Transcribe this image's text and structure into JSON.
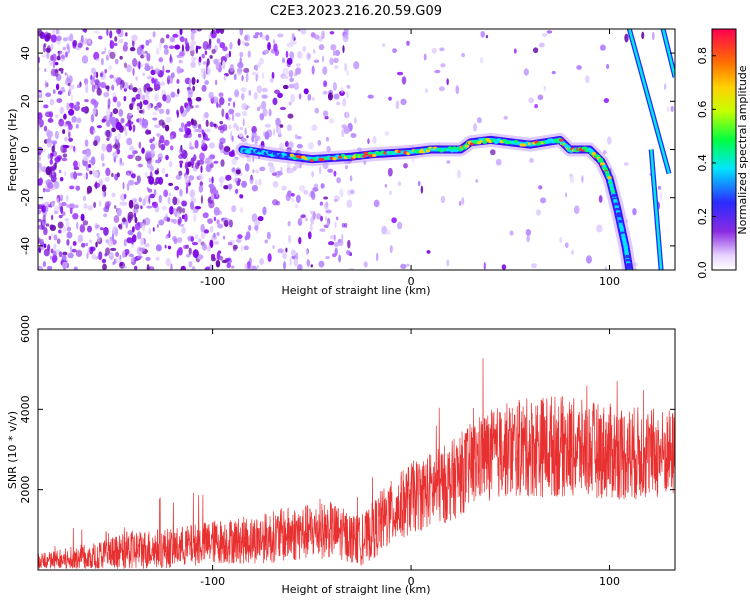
{
  "chart_data": [
    {
      "type": "heatmap",
      "title": "C2E3.2023.216.20.59.G09",
      "xlabel": "Height of straight line (km)",
      "ylabel": "Frequency (Hz)",
      "xlim": [
        -188,
        133
      ],
      "ylim": [
        -50,
        50
      ],
      "xticks": [
        -100,
        0,
        100
      ],
      "yticks": [
        -40,
        -20,
        0,
        20,
        40
      ],
      "colorbar": {
        "label": "Normalized spectral amplitude",
        "range": [
          0,
          0.9
        ],
        "ticks": [
          0.0,
          0.2,
          0.4,
          0.6,
          0.8
        ]
      },
      "ridge": {
        "description_points": [
          {
            "x": -85,
            "y": 0
          },
          {
            "x": -70,
            "y": -2
          },
          {
            "x": -50,
            "y": -4
          },
          {
            "x": -30,
            "y": -3
          },
          {
            "x": -20,
            "y": -2
          },
          {
            "x": 0,
            "y": -1
          },
          {
            "x": 10,
            "y": 0
          },
          {
            "x": 25,
            "y": 0
          },
          {
            "x": 30,
            "y": 3
          },
          {
            "x": 40,
            "y": 4
          },
          {
            "x": 60,
            "y": 2
          },
          {
            "x": 75,
            "y": 4
          },
          {
            "x": 80,
            "y": 0
          },
          {
            "x": 90,
            "y": 0
          },
          {
            "x": 96,
            "y": -5
          },
          {
            "x": 100,
            "y": -12
          },
          {
            "x": 104,
            "y": -25
          },
          {
            "x": 108,
            "y": -40
          },
          {
            "x": 110,
            "y": -50
          }
        ],
        "aliases": [
          {
            "x_start": 110,
            "y_start": 50,
            "x_end": 130,
            "y_end": -10
          },
          {
            "x_start": 127,
            "y_start": 50,
            "x_end": 133,
            "y_end": 30
          },
          {
            "x_start": 121,
            "y_start": 0,
            "x_end": 126,
            "y_end": -50
          }
        ]
      }
    },
    {
      "type": "line",
      "xlabel": "Height of straight line (km)",
      "ylabel": "SNR (10 * v/v)",
      "xlim": [
        -188,
        133
      ],
      "ylim": [
        0,
        6000
      ],
      "xticks": [
        -100,
        0,
        100
      ],
      "yticks": [
        2000,
        4000,
        6000
      ],
      "line_color": "#e83030",
      "envelope": [
        {
          "x": -188,
          "mean": 200,
          "spread": 200
        },
        {
          "x": -160,
          "mean": 300,
          "spread": 400
        },
        {
          "x": -140,
          "mean": 500,
          "spread": 500
        },
        {
          "x": -120,
          "mean": 550,
          "spread": 500
        },
        {
          "x": -100,
          "mean": 700,
          "spread": 550
        },
        {
          "x": -80,
          "mean": 750,
          "spread": 600
        },
        {
          "x": -60,
          "mean": 900,
          "spread": 700
        },
        {
          "x": -40,
          "mean": 1000,
          "spread": 700
        },
        {
          "x": -25,
          "mean": 700,
          "spread": 600
        },
        {
          "x": -15,
          "mean": 1200,
          "spread": 800
        },
        {
          "x": 0,
          "mean": 1800,
          "spread": 900
        },
        {
          "x": 20,
          "mean": 2200,
          "spread": 1000
        },
        {
          "x": 35,
          "mean": 2800,
          "spread": 1100
        },
        {
          "x": 50,
          "mean": 3000,
          "spread": 1200
        },
        {
          "x": 70,
          "mean": 3100,
          "spread": 1300
        },
        {
          "x": 90,
          "mean": 3000,
          "spread": 1200
        },
        {
          "x": 110,
          "mean": 2900,
          "spread": 1200
        },
        {
          "x": 133,
          "mean": 2900,
          "spread": 1100
        }
      ]
    }
  ]
}
